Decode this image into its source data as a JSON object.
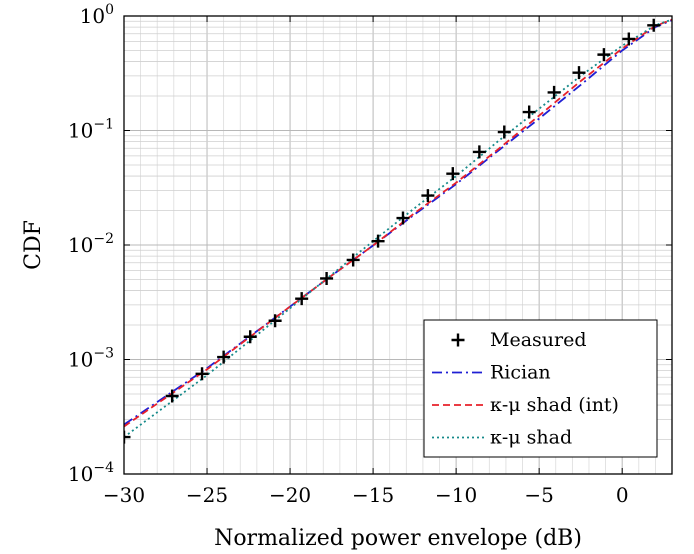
{
  "chart_data": {
    "type": "line",
    "title": "",
    "xlabel": "Normalized power envelope (dB)",
    "ylabel": "CDF",
    "xlim": [
      -30,
      3
    ],
    "ylim": [
      0.0001,
      1
    ],
    "yscale": "log",
    "grid": true,
    "legend_position": "bottom-right",
    "x_ticks": [
      {
        "value": -30,
        "label": "−30"
      },
      {
        "value": -25,
        "label": "−25"
      },
      {
        "value": -20,
        "label": "−20"
      },
      {
        "value": -15,
        "label": "−15"
      },
      {
        "value": -10,
        "label": "−10"
      },
      {
        "value": -5,
        "label": "−5"
      },
      {
        "value": 0,
        "label": "0"
      }
    ],
    "y_ticks": [
      {
        "value": 0.0001,
        "base": "10",
        "exp": "−4"
      },
      {
        "value": 0.001,
        "base": "10",
        "exp": "−3"
      },
      {
        "value": 0.01,
        "base": "10",
        "exp": "−2"
      },
      {
        "value": 0.1,
        "base": "10",
        "exp": "−1"
      },
      {
        "value": 1,
        "base": "10",
        "exp": "0"
      }
    ],
    "series": [
      {
        "name": "Measured",
        "style": "marker-plus",
        "color": "#000000",
        "x": [
          -30,
          -27.1,
          -25.3,
          -24,
          -22.4,
          -20.9,
          -19.3,
          -17.8,
          -16.2,
          -14.7,
          -13.2,
          -11.7,
          -10.2,
          -8.6,
          -7.1,
          -5.6,
          -4.1,
          -2.6,
          -1.1,
          0.4,
          1.9
        ],
        "y": [
          0.00021,
          0.00048,
          0.00075,
          0.00105,
          0.00158,
          0.00218,
          0.0034,
          0.0051,
          0.0074,
          0.0108,
          0.0172,
          0.027,
          0.042,
          0.065,
          0.097,
          0.145,
          0.215,
          0.32,
          0.46,
          0.63,
          0.83
        ]
      },
      {
        "name": "Rician",
        "style": "dash-dot",
        "color": "#1f1fd4",
        "x": [
          -30,
          -25,
          -20,
          -17.5,
          -15,
          -12.5,
          -10,
          -7.5,
          -5,
          -2.5,
          0,
          2,
          3
        ],
        "y": [
          0.00027,
          0.00084,
          0.0029,
          0.0054,
          0.0099,
          0.0185,
          0.034,
          0.066,
          0.127,
          0.25,
          0.5,
          0.8,
          0.92
        ]
      },
      {
        "name": "κ-μ shad (int)",
        "style": "dashed",
        "color": "#e8202a",
        "x": [
          -30,
          -25,
          -20,
          -17.5,
          -15,
          -12.5,
          -10,
          -7.5,
          -5,
          -2.5,
          0,
          2,
          3
        ],
        "y": [
          0.00026,
          0.00082,
          0.0029,
          0.0054,
          0.0099,
          0.019,
          0.035,
          0.068,
          0.135,
          0.27,
          0.52,
          0.82,
          0.93
        ]
      },
      {
        "name": "κ-μ shad",
        "style": "dotted",
        "color": "#168a8a",
        "x": [
          -30,
          -25,
          -20,
          -17.5,
          -15,
          -12.5,
          -10,
          -7.5,
          -5,
          -2.5,
          0,
          2,
          3
        ],
        "y": [
          0.00021,
          0.00073,
          0.0028,
          0.0055,
          0.0108,
          0.021,
          0.04,
          0.08,
          0.155,
          0.3,
          0.55,
          0.83,
          0.93
        ]
      }
    ]
  }
}
